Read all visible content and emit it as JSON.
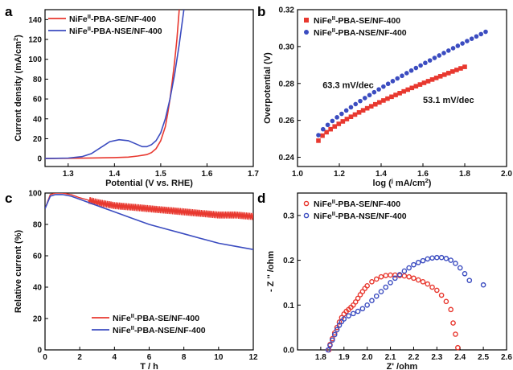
{
  "colors": {
    "red": "#e8382f",
    "blue": "#3b4cc0"
  },
  "chart_data": [
    {
      "panel": "a",
      "type": "line",
      "xlabel": "Potential (V vs. RHE)",
      "ylabel_parts": [
        "Current density (mA/cm",
        "2",
        ")"
      ],
      "xlim": [
        1.25,
        1.7
      ],
      "ylim": [
        -8,
        150
      ],
      "xticks": [
        1.3,
        1.4,
        1.5,
        1.6,
        1.7
      ],
      "yticks": [
        0,
        20,
        40,
        60,
        80,
        100,
        120,
        140
      ],
      "legend": [
        {
          "parts": [
            "NiFe",
            "II",
            "-PBA-SE/NF-400"
          ],
          "color": "#e8382f"
        },
        {
          "parts": [
            "NiFe",
            "II",
            "-PBA-NSE/NF-400"
          ],
          "color": "#3b4cc0"
        }
      ],
      "series": [
        {
          "color": "#e8382f",
          "x": [
            1.25,
            1.3,
            1.35,
            1.4,
            1.43,
            1.45,
            1.47,
            1.48,
            1.49,
            1.5,
            1.51,
            1.515,
            1.52,
            1.525,
            1.53,
            1.535,
            1.54
          ],
          "y": [
            0,
            0.3,
            0.6,
            1,
            1.5,
            2.5,
            4,
            6,
            10,
            18,
            32,
            45,
            60,
            78,
            98,
            120,
            150
          ]
        },
        {
          "color": "#3b4cc0",
          "x": [
            1.25,
            1.3,
            1.33,
            1.35,
            1.37,
            1.39,
            1.41,
            1.43,
            1.45,
            1.46,
            1.47,
            1.48,
            1.49,
            1.5,
            1.51,
            1.52,
            1.53,
            1.54,
            1.55
          ],
          "y": [
            0,
            0.5,
            2,
            5,
            11,
            17,
            19,
            18,
            14,
            12,
            12,
            14,
            18,
            26,
            40,
            60,
            85,
            115,
            150
          ]
        }
      ]
    },
    {
      "panel": "b",
      "type": "scatter",
      "xlabel_parts": [
        "log (",
        "j",
        " mA/cm",
        "2",
        ")"
      ],
      "ylabel": "Overpotential (V)",
      "xlim": [
        1.0,
        2.0
      ],
      "ylim": [
        0.235,
        0.32
      ],
      "xticks": [
        1.0,
        1.2,
        1.4,
        1.6,
        1.8,
        2.0
      ],
      "yticks": [
        0.24,
        0.26,
        0.28,
        0.3,
        0.32
      ],
      "legend": [
        {
          "parts": [
            "NiFe",
            "II",
            "-PBA-SE/NF-400"
          ],
          "color": "#e8382f",
          "marker": "square"
        },
        {
          "parts": [
            "NiFe",
            "II",
            "-PBA-NSE/NF-400"
          ],
          "color": "#3b4cc0",
          "marker": "circle"
        }
      ],
      "annotations": [
        {
          "text": "63.3 mV/dec",
          "x": 1.12,
          "y": 0.2775
        },
        {
          "text": "53.1 mV/dec",
          "x": 1.6,
          "y": 0.2695
        }
      ],
      "series": [
        {
          "color": "#e8382f",
          "marker": "square",
          "x_range": [
            1.1,
            1.8
          ],
          "y_range": [
            0.249,
            0.289
          ],
          "curve": 0.75
        },
        {
          "color": "#3b4cc0",
          "marker": "circle",
          "x_range": [
            1.1,
            1.9
          ],
          "y_range": [
            0.252,
            0.308
          ],
          "curve": 0.8
        }
      ]
    },
    {
      "panel": "c",
      "type": "line",
      "xlabel": "T / h",
      "ylabel": "Relative current (%)",
      "xlim": [
        0,
        12
      ],
      "ylim": [
        0,
        100
      ],
      "xticks": [
        0,
        2,
        4,
        6,
        8,
        10,
        12
      ],
      "yticks": [
        0,
        20,
        40,
        60,
        80,
        100
      ],
      "legend": [
        {
          "parts": [
            "NiFe",
            "II",
            "-PBA-SE/NF-400"
          ],
          "color": "#e8382f"
        },
        {
          "parts": [
            "NiFe",
            "II",
            "-PBA-NSE/NF-400"
          ],
          "color": "#3b4cc0"
        }
      ],
      "series": [
        {
          "color": "#e8382f",
          "x": [
            0,
            0.3,
            0.6,
            1,
            1.5,
            2,
            3,
            4,
            5,
            6,
            7,
            8,
            9,
            10,
            11,
            12
          ],
          "y": [
            90,
            99,
            100,
            100,
            99,
            97,
            94,
            92,
            91,
            90,
            89,
            88,
            87,
            86,
            86,
            85
          ],
          "oscillation": 2.2
        },
        {
          "color": "#3b4cc0",
          "x": [
            0,
            0.3,
            0.6,
            1,
            1.5,
            2,
            3,
            4,
            5,
            6,
            7,
            8,
            9,
            10,
            11,
            12
          ],
          "y": [
            90,
            98,
            99,
            99,
            98,
            96,
            92,
            88,
            84,
            80,
            77,
            74,
            71,
            68,
            66,
            64
          ]
        }
      ]
    },
    {
      "panel": "d",
      "type": "scatter",
      "xlabel": "Z' /ohm",
      "ylabel": "- Z '' /ohm",
      "xlim": [
        1.7,
        2.6
      ],
      "ylim": [
        0,
        0.35
      ],
      "xticks": [
        1.8,
        1.9,
        2.0,
        2.1,
        2.2,
        2.3,
        2.4,
        2.5,
        2.6
      ],
      "yticks": [
        0.0,
        0.1,
        0.2,
        0.3
      ],
      "legend": [
        {
          "parts": [
            "NiFe",
            "II",
            "-PBA-SE/NF-400"
          ],
          "color": "#e8382f",
          "marker": "circle"
        },
        {
          "parts": [
            "NiFe",
            "II",
            "-PBA-NSE/NF-400"
          ],
          "color": "#3b4cc0",
          "marker": "circle"
        }
      ],
      "series": [
        {
          "color": "#e8382f",
          "x": [
            1.835,
            1.84,
            1.85,
            1.86,
            1.87,
            1.88,
            1.89,
            1.9,
            1.91,
            1.92,
            1.93,
            1.94,
            1.95,
            1.96,
            1.97,
            1.98,
            1.99,
            2.0,
            2.02,
            2.04,
            2.06,
            2.08,
            2.1,
            2.12,
            2.14,
            2.16,
            2.18,
            2.2,
            2.22,
            2.24,
            2.26,
            2.28,
            2.3,
            2.32,
            2.34,
            2.36,
            2.37,
            2.38,
            2.39
          ],
          "y": [
            0,
            0.012,
            0.025,
            0.038,
            0.05,
            0.062,
            0.072,
            0.08,
            0.086,
            0.09,
            0.095,
            0.1,
            0.107,
            0.115,
            0.123,
            0.13,
            0.137,
            0.143,
            0.152,
            0.158,
            0.163,
            0.166,
            0.167,
            0.167,
            0.166,
            0.165,
            0.163,
            0.16,
            0.156,
            0.152,
            0.147,
            0.14,
            0.133,
            0.122,
            0.108,
            0.09,
            0.06,
            0.035,
            0.005
          ]
        },
        {
          "color": "#3b4cc0",
          "x": [
            1.832,
            1.84,
            1.85,
            1.86,
            1.87,
            1.88,
            1.89,
            1.9,
            1.92,
            1.94,
            1.96,
            1.98,
            2.0,
            2.02,
            2.04,
            2.06,
            2.08,
            2.1,
            2.12,
            2.14,
            2.16,
            2.18,
            2.2,
            2.22,
            2.24,
            2.26,
            2.28,
            2.3,
            2.32,
            2.34,
            2.36,
            2.38,
            2.4,
            2.42,
            2.44,
            2.5
          ],
          "y": [
            0,
            0.01,
            0.022,
            0.034,
            0.045,
            0.055,
            0.063,
            0.069,
            0.076,
            0.081,
            0.086,
            0.092,
            0.1,
            0.11,
            0.12,
            0.13,
            0.14,
            0.15,
            0.16,
            0.168,
            0.176,
            0.183,
            0.19,
            0.195,
            0.199,
            0.203,
            0.205,
            0.206,
            0.206,
            0.204,
            0.2,
            0.193,
            0.183,
            0.17,
            0.155,
            0.145
          ]
        }
      ]
    }
  ]
}
